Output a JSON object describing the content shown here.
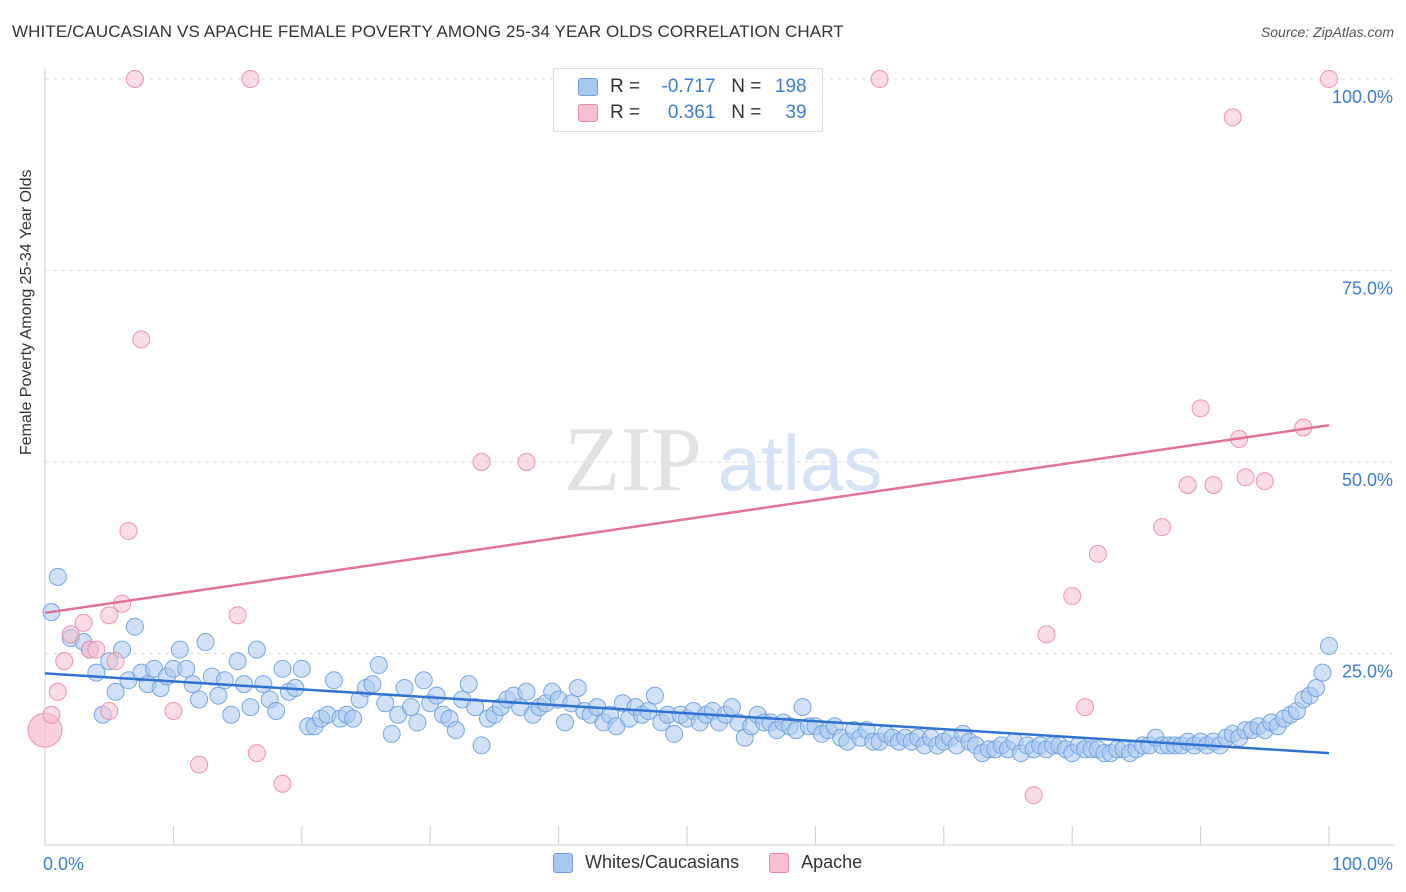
{
  "title": "WHITE/CAUCASIAN VS APACHE FEMALE POVERTY AMONG 25-34 YEAR OLDS CORRELATION CHART",
  "source": "Source: ZipAtlas.com",
  "watermark": {
    "zip": "ZIP",
    "atlas": "atlas"
  },
  "legend": {
    "r_label": "R =",
    "n_label": "N =",
    "rows": [
      {
        "r": "-0.717",
        "n": "198",
        "color": "#a9c8f0",
        "border": "#6a9fe0"
      },
      {
        "r": "0.361",
        "n": "39",
        "color": "#f7bfd0",
        "border": "#e889a8"
      }
    ]
  },
  "bottom_legend": [
    "Whites/Caucasians",
    "Apache"
  ],
  "chart_data": {
    "type": "scatter",
    "title": "WHITE/CAUCASIAN VS APACHE FEMALE POVERTY AMONG 25-34 YEAR OLDS CORRELATION CHART",
    "xlabel": "",
    "ylabel": "Female Poverty Among 25-34 Year Olds",
    "xlim": [
      0,
      100
    ],
    "ylim": [
      0,
      100
    ],
    "x_ticks": [
      "0.0%",
      "100.0%"
    ],
    "y_ticks": [
      {
        "value": 25,
        "label": "25.0%"
      },
      {
        "value": 50,
        "label": "50.0%"
      },
      {
        "value": 75,
        "label": "75.0%"
      },
      {
        "value": 100,
        "label": "100.0%"
      }
    ],
    "grid": "dashed horizontal",
    "legend_position": "top-center",
    "series": [
      {
        "name": "Whites/Caucasians",
        "color": "#a9c8f0",
        "stroke": "#6a9fe0",
        "trend": {
          "color": "#2e72d2",
          "x": [
            0,
            100
          ],
          "y": [
            22.4,
            12.0
          ]
        },
        "points": [
          [
            0.5,
            30.4
          ],
          [
            1,
            35
          ],
          [
            2,
            27
          ],
          [
            3,
            26.5
          ],
          [
            3.5,
            25.5
          ],
          [
            4,
            22.5
          ],
          [
            4.5,
            17
          ],
          [
            5,
            24
          ],
          [
            5.5,
            20
          ],
          [
            6,
            25.5
          ],
          [
            6.5,
            21.5
          ],
          [
            7,
            28.5
          ],
          [
            7.5,
            22.5
          ],
          [
            8,
            21
          ],
          [
            8.5,
            23
          ],
          [
            9,
            20.5
          ],
          [
            9.5,
            22
          ],
          [
            10,
            23
          ],
          [
            10.5,
            25.5
          ],
          [
            11,
            23
          ],
          [
            11.5,
            21
          ],
          [
            12,
            19
          ],
          [
            12.5,
            26.5
          ],
          [
            13,
            22
          ],
          [
            13.5,
            19.5
          ],
          [
            14,
            21.5
          ],
          [
            14.5,
            17
          ],
          [
            15,
            24
          ],
          [
            15.5,
            21
          ],
          [
            16,
            18
          ],
          [
            16.5,
            25.5
          ],
          [
            17,
            21
          ],
          [
            17.5,
            19
          ],
          [
            18,
            17.5
          ],
          [
            18.5,
            23
          ],
          [
            19,
            20
          ],
          [
            19.5,
            20.5
          ],
          [
            20,
            23
          ],
          [
            20.5,
            15.5
          ],
          [
            21,
            15.5
          ],
          [
            21.5,
            16.5
          ],
          [
            22,
            17
          ],
          [
            22.5,
            21.5
          ],
          [
            23,
            16.5
          ],
          [
            23.5,
            17
          ],
          [
            24,
            16.5
          ],
          [
            24.5,
            19
          ],
          [
            25,
            20.5
          ],
          [
            25.5,
            21
          ],
          [
            26,
            23.5
          ],
          [
            26.5,
            18.5
          ],
          [
            27,
            14.5
          ],
          [
            27.5,
            17
          ],
          [
            28,
            20.5
          ],
          [
            28.5,
            18
          ],
          [
            29,
            16
          ],
          [
            29.5,
            21.5
          ],
          [
            30,
            18.5
          ],
          [
            30.5,
            19.5
          ],
          [
            31,
            17
          ],
          [
            31.5,
            16.5
          ],
          [
            32,
            15
          ],
          [
            32.5,
            19
          ],
          [
            33,
            21
          ],
          [
            33.5,
            18
          ],
          [
            34,
            13
          ],
          [
            34.5,
            16.5
          ],
          [
            35,
            17
          ],
          [
            35.5,
            18
          ],
          [
            36,
            19
          ],
          [
            36.5,
            19.5
          ],
          [
            37,
            18
          ],
          [
            37.5,
            20
          ],
          [
            38,
            17
          ],
          [
            38.5,
            18
          ],
          [
            39,
            18.5
          ],
          [
            39.5,
            20
          ],
          [
            40,
            19
          ],
          [
            40.5,
            16
          ],
          [
            41,
            18.5
          ],
          [
            41.5,
            20.5
          ],
          [
            42,
            17.5
          ],
          [
            42.5,
            17
          ],
          [
            43,
            18
          ],
          [
            43.5,
            16
          ],
          [
            44,
            17
          ],
          [
            44.5,
            15.5
          ],
          [
            45,
            18.5
          ],
          [
            45.5,
            16.5
          ],
          [
            46,
            18
          ],
          [
            46.5,
            17
          ],
          [
            47,
            17.5
          ],
          [
            47.5,
            19.5
          ],
          [
            48,
            16
          ],
          [
            48.5,
            17
          ],
          [
            49,
            14.5
          ],
          [
            49.5,
            17
          ],
          [
            50,
            16.5
          ],
          [
            50.5,
            17.5
          ],
          [
            51,
            16
          ],
          [
            51.5,
            17
          ],
          [
            52,
            17.5
          ],
          [
            52.5,
            16
          ],
          [
            53,
            17
          ],
          [
            53.5,
            18
          ],
          [
            54,
            16
          ],
          [
            54.5,
            14
          ],
          [
            55,
            15.5
          ],
          [
            55.5,
            17
          ],
          [
            56,
            16
          ],
          [
            56.5,
            16
          ],
          [
            57,
            15
          ],
          [
            57.5,
            16
          ],
          [
            58,
            15.5
          ],
          [
            58.5,
            15
          ],
          [
            59,
            18
          ],
          [
            59.5,
            15.5
          ],
          [
            60,
            15.5
          ],
          [
            60.5,
            14.5
          ],
          [
            61,
            15
          ],
          [
            61.5,
            15.5
          ],
          [
            62,
            14
          ],
          [
            62.5,
            13.5
          ],
          [
            63,
            15
          ],
          [
            63.5,
            14
          ],
          [
            64,
            15
          ],
          [
            64.5,
            13.5
          ],
          [
            65,
            13.5
          ],
          [
            65.5,
            14.5
          ],
          [
            66,
            14
          ],
          [
            66.5,
            13.5
          ],
          [
            67,
            14
          ],
          [
            67.5,
            13.5
          ],
          [
            68,
            14
          ],
          [
            68.5,
            13
          ],
          [
            69,
            14
          ],
          [
            69.5,
            13
          ],
          [
            70,
            13.5
          ],
          [
            70.5,
            14
          ],
          [
            71,
            13
          ],
          [
            71.5,
            14.5
          ],
          [
            72,
            13.5
          ],
          [
            72.5,
            13
          ],
          [
            73,
            12
          ],
          [
            73.5,
            12.5
          ],
          [
            74,
            12.5
          ],
          [
            74.5,
            13
          ],
          [
            75,
            12.5
          ],
          [
            75.5,
            13.5
          ],
          [
            76,
            12
          ],
          [
            76.5,
            13
          ],
          [
            77,
            12.5
          ],
          [
            77.5,
            13
          ],
          [
            78,
            12.5
          ],
          [
            78.5,
            13
          ],
          [
            79,
            13
          ],
          [
            79.5,
            12.5
          ],
          [
            80,
            12
          ],
          [
            80.5,
            13
          ],
          [
            81,
            12.5
          ],
          [
            81.5,
            12.5
          ],
          [
            82,
            12.5
          ],
          [
            82.5,
            12
          ],
          [
            83,
            12
          ],
          [
            83.5,
            12.5
          ],
          [
            84,
            12.5
          ],
          [
            84.5,
            12
          ],
          [
            85,
            12.5
          ],
          [
            85.5,
            13
          ],
          [
            86,
            13
          ],
          [
            86.5,
            14
          ],
          [
            87,
            13
          ],
          [
            87.5,
            13
          ],
          [
            88,
            13
          ],
          [
            88.5,
            13
          ],
          [
            89,
            13.5
          ],
          [
            89.5,
            13
          ],
          [
            90,
            13.5
          ],
          [
            90.5,
            13
          ],
          [
            91,
            13.5
          ],
          [
            91.5,
            13
          ],
          [
            92,
            14
          ],
          [
            92.5,
            14.5
          ],
          [
            93,
            14
          ],
          [
            93.5,
            15
          ],
          [
            94,
            15
          ],
          [
            94.5,
            15.5
          ],
          [
            95,
            15
          ],
          [
            95.5,
            16
          ],
          [
            96,
            15.5
          ],
          [
            96.5,
            16.5
          ],
          [
            97,
            17
          ],
          [
            97.5,
            17.5
          ],
          [
            98,
            19
          ],
          [
            98.5,
            19.5
          ],
          [
            99,
            20.5
          ],
          [
            99.5,
            22.5
          ],
          [
            100,
            26
          ]
        ]
      },
      {
        "name": "Apache",
        "color": "#f7bfd0",
        "stroke": "#e889a8",
        "trend": {
          "color": "#e2729a",
          "x": [
            0,
            100
          ],
          "y": [
            30.3,
            54.8
          ]
        },
        "points": [
          [
            0,
            15
          ],
          [
            0.5,
            17
          ],
          [
            1,
            20
          ],
          [
            1.5,
            24
          ],
          [
            2,
            27.5
          ],
          [
            3,
            29
          ],
          [
            3.5,
            25.5
          ],
          [
            4,
            25.5
          ],
          [
            5,
            17.5
          ],
          [
            5,
            30
          ],
          [
            5.5,
            24
          ],
          [
            6,
            31.5
          ],
          [
            6.5,
            41
          ],
          [
            7,
            100
          ],
          [
            7.5,
            66
          ],
          [
            10,
            17.5
          ],
          [
            12,
            10.5
          ],
          [
            15,
            30
          ],
          [
            16,
            100
          ],
          [
            16.5,
            12
          ],
          [
            18.5,
            8
          ],
          [
            34,
            50
          ],
          [
            37.5,
            50
          ],
          [
            65,
            100
          ],
          [
            77,
            6.5
          ],
          [
            78,
            27.5
          ],
          [
            80,
            32.5
          ],
          [
            81,
            18
          ],
          [
            82,
            38
          ],
          [
            87,
            41.5
          ],
          [
            89,
            47
          ],
          [
            90,
            57
          ],
          [
            91,
            47
          ],
          [
            92.5,
            95
          ],
          [
            93,
            53
          ],
          [
            93.5,
            48
          ],
          [
            95,
            47.5
          ],
          [
            98,
            54.5
          ],
          [
            100,
            100
          ]
        ]
      }
    ]
  }
}
